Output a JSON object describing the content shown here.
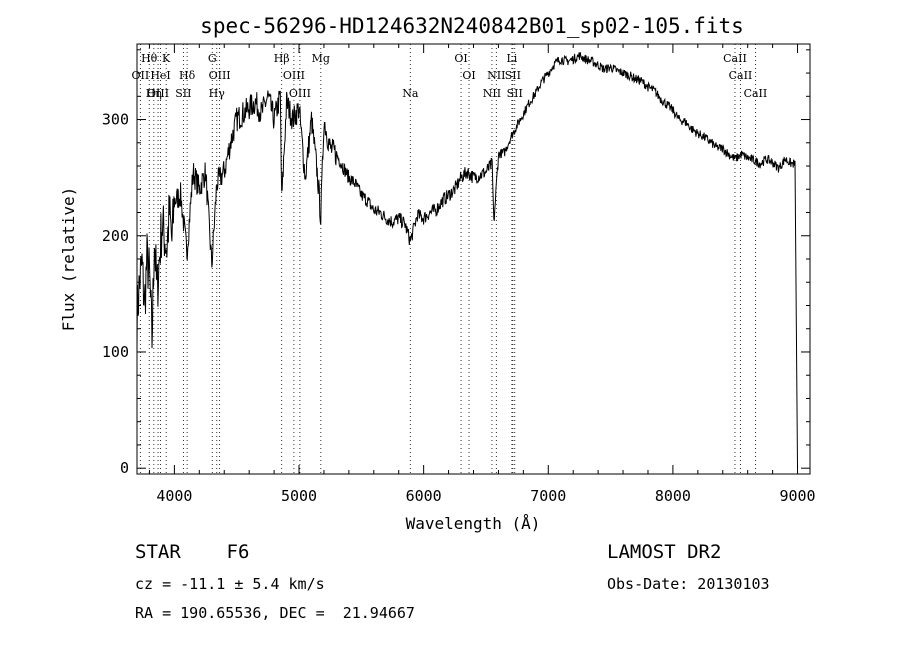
{
  "chart_data": {
    "type": "line",
    "title": "spec-56296-HD124632N240842B01_sp02-105.fits",
    "xlabel": "Wavelength (Å)",
    "ylabel": "Flux (relative)",
    "xlim": [
      3700,
      9100
    ],
    "ylim": [
      -5,
      365
    ],
    "xticks": [
      4000,
      5000,
      6000,
      7000,
      8000,
      9000
    ],
    "yticks": [
      0,
      100,
      200,
      300
    ],
    "grid": false,
    "color": "#000000",
    "line_marker_color": "#000000",
    "series": [
      {
        "x": [
          3700,
          3720,
          3740,
          3760,
          3780,
          3800,
          3820,
          3840,
          3860,
          3880,
          3900,
          3920,
          3940,
          3960,
          3980,
          4000,
          4050,
          4100,
          4150,
          4200,
          4250,
          4300,
          4340,
          4400,
          4450,
          4500,
          4550,
          4600,
          4650,
          4700,
          4750,
          4800,
          4850,
          4861,
          4900,
          4950,
          5000,
          5050,
          5100,
          5150,
          5175,
          5200,
          5250,
          5300,
          5350,
          5400,
          5450,
          5500,
          5550,
          5600,
          5650,
          5700,
          5750,
          5800,
          5850,
          5893,
          5950,
          6000,
          6050,
          6100,
          6150,
          6200,
          6250,
          6300,
          6350,
          6400,
          6450,
          6500,
          6550,
          6563,
          6600,
          6650,
          6700,
          6750,
          6800,
          6850,
          6900,
          6950,
          7000,
          7050,
          7100,
          7150,
          7200,
          7250,
          7300,
          7350,
          7400,
          7450,
          7500,
          7550,
          7600,
          7650,
          7700,
          7750,
          7800,
          7850,
          7900,
          7950,
          8000,
          8050,
          8100,
          8150,
          8200,
          8250,
          8300,
          8350,
          8400,
          8450,
          8500,
          8550,
          8600,
          8650,
          8700,
          8750,
          8800,
          8850,
          8900,
          8950,
          8980,
          9000
        ],
        "y": [
          130,
          160,
          175,
          140,
          180,
          165,
          110,
          200,
          150,
          180,
          210,
          200,
          190,
          220,
          195,
          230,
          235,
          185,
          255,
          240,
          255,
          175,
          245,
          255,
          280,
          300,
          305,
          310,
          315,
          305,
          320,
          300,
          320,
          230,
          315,
          300,
          310,
          250,
          300,
          250,
          215,
          300,
          275,
          270,
          260,
          250,
          245,
          235,
          230,
          222,
          220,
          215,
          212,
          215,
          210,
          195,
          218,
          215,
          220,
          222,
          230,
          235,
          240,
          250,
          255,
          250,
          252,
          255,
          262,
          210,
          270,
          272,
          285,
          295,
          305,
          315,
          323,
          333,
          340,
          348,
          352,
          350,
          352,
          355,
          352,
          350,
          347,
          343,
          345,
          342,
          340,
          338,
          335,
          333,
          328,
          325,
          318,
          313,
          308,
          300,
          298,
          292,
          288,
          285,
          281,
          276,
          275,
          270,
          266,
          270,
          267,
          265,
          262,
          266,
          263,
          258,
          266,
          262,
          262,
          0
        ]
      }
    ],
    "lines": [
      {
        "label": "Hθ",
        "x": 3798
      },
      {
        "label": "OII",
        "x": 3727
      },
      {
        "label": "OIII",
        "x": 3869
      },
      {
        "label": "Hη",
        "x": 3835
      },
      {
        "label": "HeI",
        "x": 3889
      },
      {
        "label": "K",
        "x": 3934
      },
      {
        "label": "Hδ",
        "x": 4102
      },
      {
        "label": "SII",
        "x": 4072
      },
      {
        "label": "G",
        "x": 4304
      },
      {
        "label": "OIII",
        "x": 4363
      },
      {
        "label": "Hγ",
        "x": 4340
      },
      {
        "label": "Hβ",
        "x": 4861
      },
      {
        "label": "OIII",
        "x": 4959
      },
      {
        "label": "OIII",
        "x": 5007
      },
      {
        "label": "Mg",
        "x": 5175
      },
      {
        "label": "Na",
        "x": 5893
      },
      {
        "label": "OI",
        "x": 6300
      },
      {
        "label": "OI",
        "x": 6364
      },
      {
        "label": "NII",
        "x": 6548
      },
      {
        "label": "NII",
        "x": 6583
      },
      {
        "label": "Li",
        "x": 6708
      },
      {
        "label": "SII",
        "x": 6716
      },
      {
        "label": "SII",
        "x": 6731
      },
      {
        "label": "CaII",
        "x": 8498
      },
      {
        "label": "CaII",
        "x": 8542
      },
      {
        "label": "CaII",
        "x": 8662
      }
    ]
  },
  "labels": {
    "row1": [
      {
        "text": "Hθ",
        "x": 3798
      },
      {
        "text": "K",
        "x": 3934
      },
      {
        "text": "G",
        "x": 4304
      },
      {
        "text": "Hβ",
        "x": 4861
      },
      {
        "text": "Mg",
        "x": 5175
      },
      {
        "text": "OI",
        "x": 6300
      },
      {
        "text": "Li",
        "x": 6708
      },
      {
        "text": "CaII",
        "x": 8498
      }
    ],
    "row2": [
      {
        "text": "OII",
        "x": 3727
      },
      {
        "text": "HeI",
        "x": 3889
      },
      {
        "text": "Hδ",
        "x": 4102
      },
      {
        "text": "OIII",
        "x": 4363
      },
      {
        "text": "OIII",
        "x": 4959
      },
      {
        "text": "OI",
        "x": 6364
      },
      {
        "text": "NII",
        "x": 6583
      },
      {
        "text": "SII",
        "x": 6716
      },
      {
        "text": "CaII",
        "x": 8542
      }
    ],
    "row3": [
      {
        "text": "OIII",
        "x": 3869
      },
      {
        "text": "Hη",
        "x": 3835
      },
      {
        "text": "SII",
        "x": 4072
      },
      {
        "text": "Hγ",
        "x": 4340
      },
      {
        "text": "OIII",
        "x": 5007
      },
      {
        "text": "Na",
        "x": 5893
      },
      {
        "text": "NII",
        "x": 6548
      },
      {
        "text": "SII",
        "x": 6731
      },
      {
        "text": "CaII",
        "x": 8662
      }
    ]
  },
  "info": {
    "class": "STAR    F6",
    "cz": "cz = -11.1 ± 5.4 km/s",
    "coords": "RA = 190.65536, DEC =  21.94667",
    "survey": "LAMOST DR2",
    "obs_date": "Obs-Date: 20130103"
  }
}
